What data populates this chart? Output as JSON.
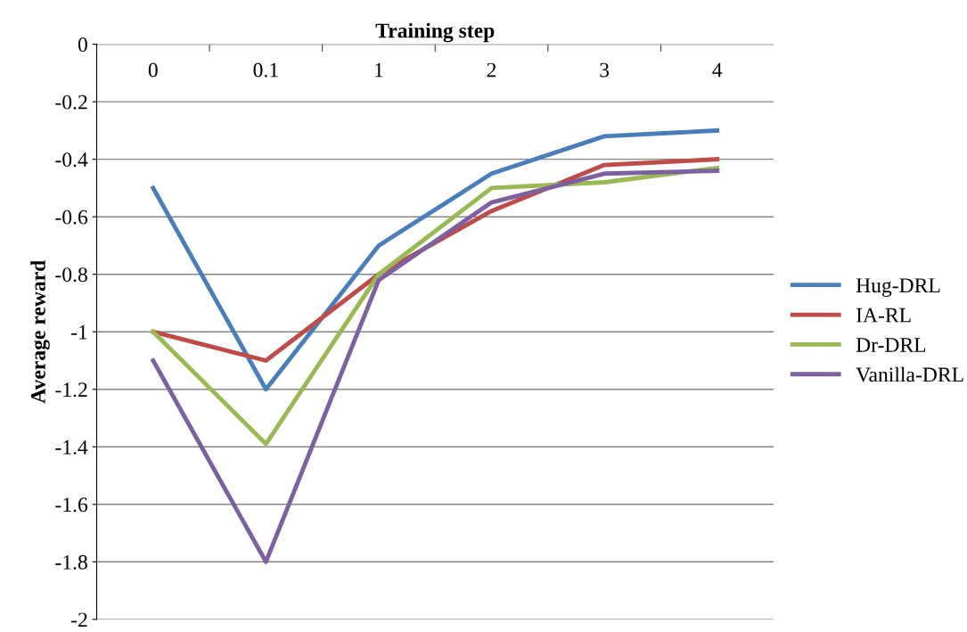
{
  "chart_data": {
    "type": "line",
    "xlabel": "Training step",
    "ylabel": "Average reward",
    "categories": [
      "0",
      "0.1",
      "1",
      "2",
      "3",
      "4"
    ],
    "series": [
      {
        "name": "Hug-DRL",
        "color": "#4a7ebb",
        "values": [
          -0.5,
          -1.2,
          -0.7,
          -0.45,
          -0.32,
          -0.3
        ]
      },
      {
        "name": "IA-RL",
        "color": "#be4b48",
        "values": [
          -1.0,
          -1.1,
          -0.8,
          -0.58,
          -0.42,
          -0.4
        ]
      },
      {
        "name": "Dr-DRL",
        "color": "#98b954",
        "values": [
          -1.0,
          -1.39,
          -0.8,
          -0.5,
          -0.48,
          -0.43
        ]
      },
      {
        "name": "Vanilla-DRL",
        "color": "#7d60a0",
        "values": [
          -1.1,
          -1.8,
          -0.82,
          -0.55,
          -0.45,
          -0.44
        ]
      }
    ],
    "ylim": [
      -2,
      0
    ],
    "yticks": [
      -2,
      -1.8,
      -1.6,
      -1.4,
      -1.2,
      -1,
      -0.8,
      -0.6,
      -0.4,
      -0.2,
      0
    ],
    "grid": "y",
    "legend": "right",
    "marker": "none",
    "line_style": "solid"
  }
}
